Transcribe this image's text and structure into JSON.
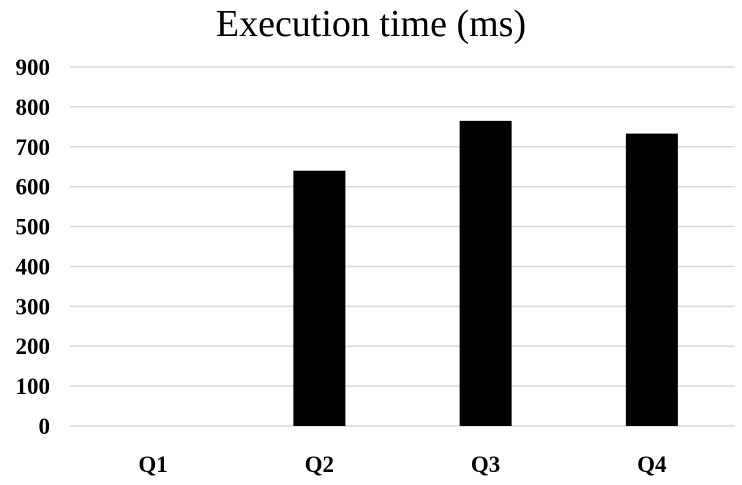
{
  "chart_data": {
    "type": "bar",
    "title": "Execution time (ms)",
    "xlabel": "",
    "ylabel": "",
    "categories": [
      "Q1",
      "Q2",
      "Q3",
      "Q4"
    ],
    "values": [
      0,
      640,
      765,
      733
    ],
    "ylim": [
      0,
      900
    ],
    "yticks": [
      "0",
      "100",
      "200",
      "300",
      "400",
      "500",
      "600",
      "700",
      "800",
      "900"
    ],
    "grid": true,
    "legend": "none",
    "bar_color": "#000000",
    "grid_color": "#d9d9d9"
  }
}
